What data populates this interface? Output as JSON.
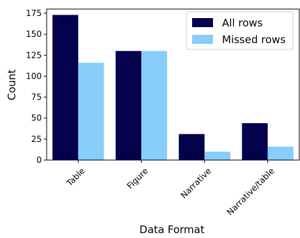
{
  "chart_data": {
    "type": "bar",
    "title": "",
    "xlabel": "Data Format",
    "ylabel": "Count",
    "categories": [
      "Table",
      "Figure",
      "Narrative",
      "Narrative/table"
    ],
    "series": [
      {
        "name": "All rows",
        "values": [
          173,
          130,
          31,
          44
        ],
        "color": "#04014d"
      },
      {
        "name": "Missed rows",
        "values": [
          116,
          130,
          10,
          16
        ],
        "color": "#87cefa"
      }
    ],
    "ylim": [
      0,
      180
    ],
    "yticks": [
      0,
      25,
      50,
      75,
      100,
      125,
      150,
      175
    ],
    "grid": false,
    "legend": "top-right"
  }
}
